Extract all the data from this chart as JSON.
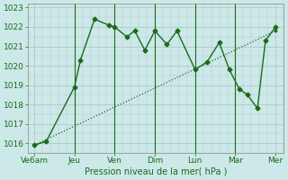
{
  "xlabel": "Pression niveau de la mer( hPa )",
  "background_color": "#cce8e8",
  "plot_bg_color": "#cce8e8",
  "grid_color": "#b0c8c8",
  "line_color": "#1a6b1a",
  "vert_line_color": "#1a6b1a",
  "x_ticks_labels": [
    "Ve6am",
    "Jeu",
    "Ven",
    "Dim",
    "Lun",
    "Mar",
    "Mer"
  ],
  "x_ticks_pos": [
    0,
    1,
    2,
    3,
    4,
    5,
    6
  ],
  "ylim": [
    1015.5,
    1023.2
  ],
  "yticks": [
    1016,
    1017,
    1018,
    1019,
    1020,
    1021,
    1022,
    1023
  ],
  "line1_x": [
    0,
    0.3,
    1.0,
    1.15,
    1.5,
    1.85,
    2.0,
    2.3,
    2.5,
    2.75,
    3.0,
    3.3,
    3.55,
    4.0,
    4.3,
    4.6,
    4.85,
    5.1,
    5.3,
    5.55,
    5.75,
    6.0
  ],
  "line1_y": [
    1015.9,
    1016.1,
    1018.9,
    1020.3,
    1022.4,
    1022.1,
    1022.0,
    1021.5,
    1021.8,
    1020.8,
    1021.8,
    1021.1,
    1021.8,
    1019.8,
    1020.2,
    1021.2,
    1019.8,
    1018.8,
    1018.5,
    1017.8,
    1021.3,
    1022.0
  ],
  "line2_x": [
    0,
    6.0
  ],
  "line2_y": [
    1015.9,
    1021.8
  ],
  "vert_line_x": [
    1.0,
    2.0,
    3.0,
    4.0,
    5.0
  ],
  "font_size": 7,
  "tick_font_size": 6.5,
  "marker_size": 2.5,
  "figsize": [
    3.2,
    2.0
  ],
  "dpi": 100
}
